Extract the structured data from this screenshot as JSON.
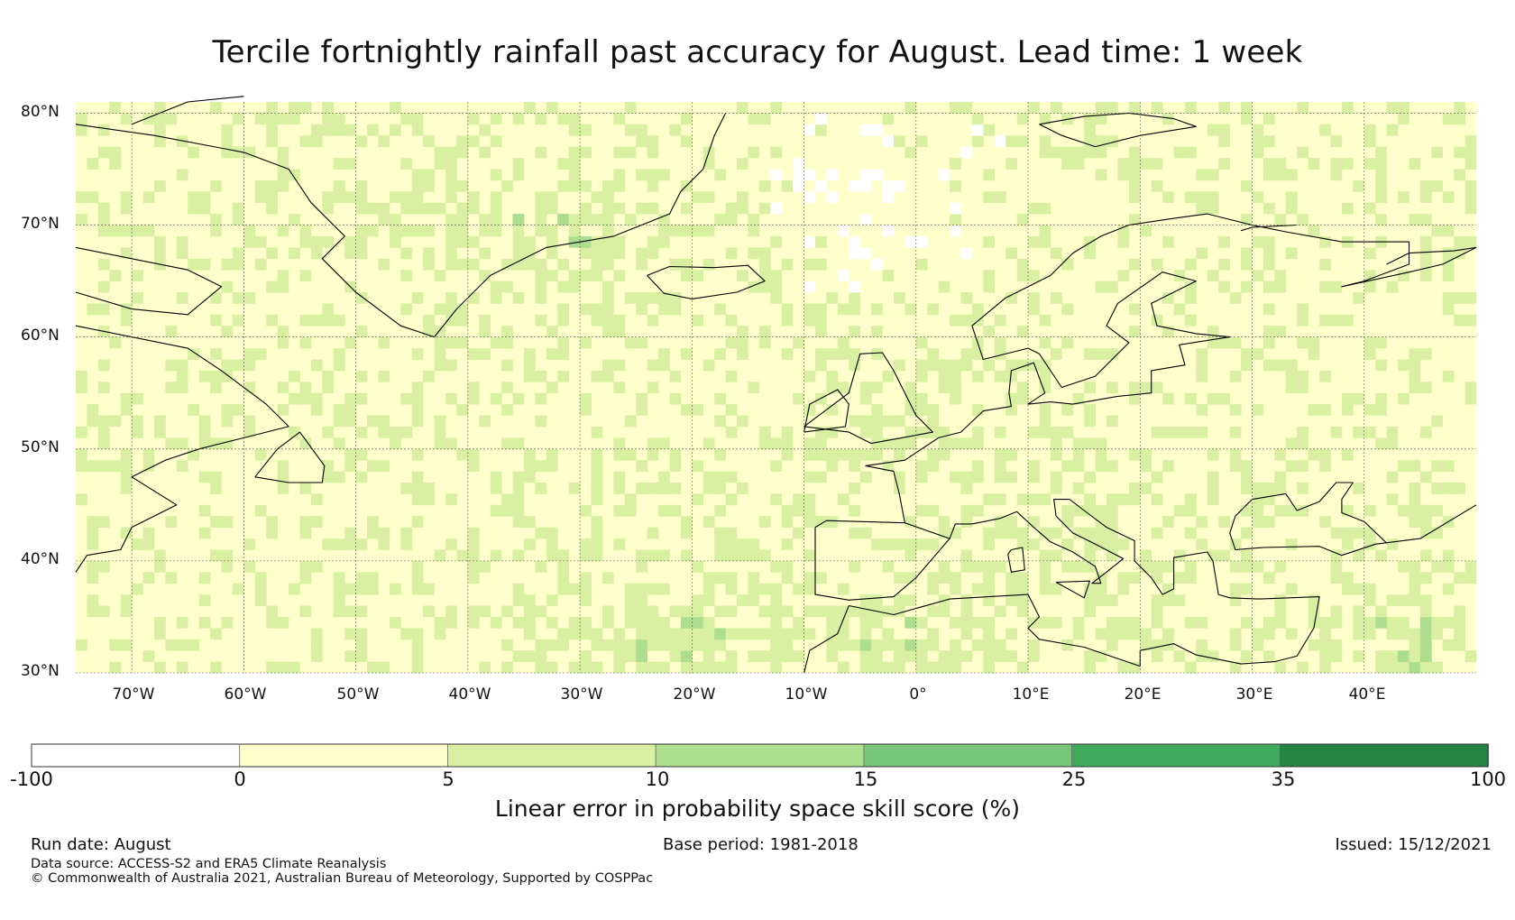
{
  "title": "Tercile fortnightly rainfall past accuracy for August. Lead time: 1 week",
  "map": {
    "lon_range": [
      -75,
      50
    ],
    "lat_range": [
      30,
      81
    ],
    "lat_labels": [
      "30°N",
      "40°N",
      "50°N",
      "60°N",
      "70°N",
      "80°N"
    ],
    "lon_labels": [
      "70°W",
      "60°W",
      "50°W",
      "40°W",
      "30°W",
      "20°W",
      "10°W",
      "0°",
      "10°E",
      "20°E",
      "30°E",
      "40°E"
    ],
    "lat_ticks": [
      30,
      40,
      50,
      60,
      70,
      80
    ],
    "lon_ticks": [
      -70,
      -60,
      -50,
      -40,
      -30,
      -20,
      -10,
      0,
      10,
      20,
      30,
      40
    ],
    "gridlines": true
  },
  "colorbar": {
    "label": "Linear error in probability space skill score (%)",
    "ticks": [
      "-100",
      "0",
      "5",
      "10",
      "15",
      "25",
      "35",
      "100"
    ],
    "colors": [
      "#ffffff",
      "#ffffcc",
      "#d9f0a3",
      "#addd8e",
      "#78c679",
      "#41ab5d",
      "#238443"
    ]
  },
  "footer": {
    "run_date": "Run date: August",
    "base_period": "Base period: 1981-2018",
    "issued": "Issued: 15/12/2021",
    "data_source": "Data source: ACCESS-S2 and ERA5 Climate Reanalysis",
    "copyright": "© Commonwealth of Australia 2021, Australian Bureau of Meteorology, Supported by COSPPac"
  }
}
